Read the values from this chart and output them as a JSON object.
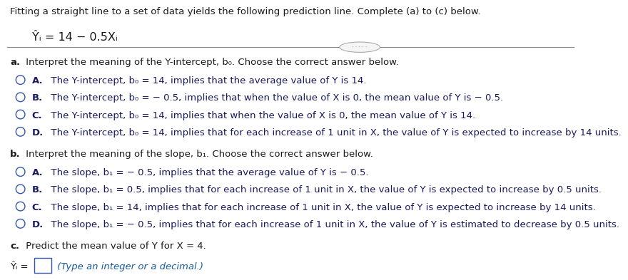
{
  "bg_color": "#ffffff",
  "text_color_body": "#1a1a5e",
  "text_color_black": "#1a1a1a",
  "text_color_blue_hint": "#1a5c9e",
  "header_text": "Fitting a straight line to a set of data yields the following prediction line. Complete (a) to (c) below.",
  "equation": "Ŷᵢ = 14 − 0.5Xᵢ",
  "part_a_label": "a.",
  "part_a_intro": " Interpret the meaning of the Y-intercept, b₀. Choose the correct answer below.",
  "part_a_options": [
    [
      "A.",
      "  The Y-intercept, b₀ = 14, implies that the average value of Y is 14."
    ],
    [
      "B.",
      "  The Y-intercept, b₀ = − 0.5, implies that when the value of X is 0, the mean value of Y is − 0.5."
    ],
    [
      "C.",
      "  The Y-intercept, b₀ = 14, implies that when the value of X is 0, the mean value of Y is 14."
    ],
    [
      "D.",
      "  The Y-intercept, b₀ = 14, implies that for each increase of 1 unit in X, the value of Y is expected to increase by 14 units."
    ]
  ],
  "part_b_label": "b.",
  "part_b_intro": " Interpret the meaning of the slope, b₁. Choose the correct answer below.",
  "part_b_options": [
    [
      "A.",
      "  The slope, b₁ = − 0.5, implies that the average value of Y is − 0.5."
    ],
    [
      "B.",
      "  The slope, b₁ = 0.5, implies that for each increase of 1 unit in X, the value of Y is expected to increase by 0.5 units."
    ],
    [
      "C.",
      "  The slope, b₁ = 14, implies that for each increase of 1 unit in X, the value of Y is expected to increase by 14 units."
    ],
    [
      "D.",
      "  The slope, b₁ = − 0.5, implies that for each increase of 1 unit in X, the value of Y is estimated to decrease by 0.5 units."
    ]
  ],
  "part_c_label": "c.",
  "part_c_intro": " Predict the mean value of Y for X = 4.",
  "part_c_answer_label": "Ŷᵢ =",
  "part_c_hint": " (Type an integer or a decimal.)",
  "font_size_header": 9.5,
  "font_size_equation": 11.5,
  "font_size_body": 9.5,
  "circle_color": "#3355aa",
  "separator_color": "#888888",
  "ellipse_fill": "#f5f5f5",
  "ellipse_edge": "#aaaaaa"
}
